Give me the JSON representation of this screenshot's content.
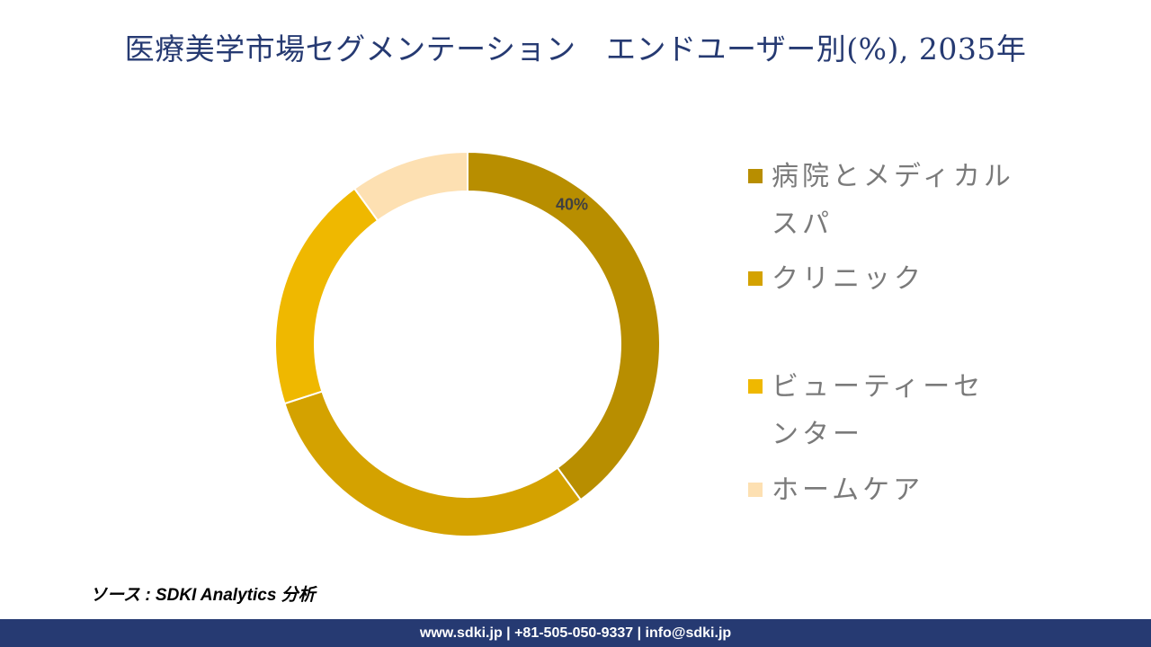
{
  "header": {
    "title": "医療美学市場セグメンテーション　エンドユーザー別(%), 2035年"
  },
  "chart_data": {
    "type": "pie",
    "variant": "donut",
    "title": "医療美学市場セグメンテーション　エンドユーザー別(%), 2035年",
    "categories": [
      "病院とメディカルスパ",
      "クリニック",
      "ビューティーセンター",
      "ホームケア"
    ],
    "values": [
      40,
      30,
      20,
      10
    ],
    "colors": [
      "#b88e00",
      "#d4a200",
      "#efb800",
      "#fde0b2"
    ],
    "data_labels": [
      "40%",
      "",
      "",
      ""
    ],
    "legend_position": "right"
  },
  "footer": {
    "source": "ソース : SDKI Analytics 分析",
    "contact": "www.sdki.jp | +81-505-050-9337 | info@sdki.jp"
  }
}
